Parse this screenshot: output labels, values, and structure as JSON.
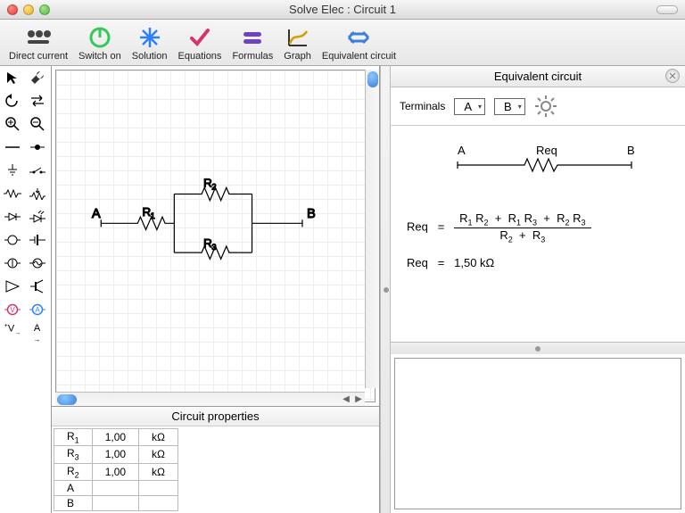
{
  "window": {
    "title": "Solve Elec : Circuit 1"
  },
  "toolbar": [
    {
      "label": "Direct current"
    },
    {
      "label": "Switch on"
    },
    {
      "label": "Solution"
    },
    {
      "label": "Equations"
    },
    {
      "label": "Formulas"
    },
    {
      "label": "Graph"
    },
    {
      "label": "Equivalent circuit"
    }
  ],
  "canvas": {
    "terminal_a": "A",
    "terminal_b": "B",
    "r1": "R",
    "r2": "R",
    "r3": "R"
  },
  "props": {
    "title": "Circuit properties",
    "rows": [
      {
        "name": "R",
        "sub": "1",
        "val": "1,00",
        "unit": "kΩ"
      },
      {
        "name": "R",
        "sub": "3",
        "val": "1,00",
        "unit": "kΩ"
      },
      {
        "name": "R",
        "sub": "2",
        "val": "1,00",
        "unit": "kΩ"
      },
      {
        "name": "A",
        "sub": "",
        "val": "",
        "unit": ""
      },
      {
        "name": "B",
        "sub": "",
        "val": "",
        "unit": ""
      }
    ]
  },
  "eqpanel": {
    "title": "Equivalent circuit",
    "terminals_label": "Terminals",
    "terminal_a": "A",
    "terminal_b": "B",
    "diagram": {
      "a": "A",
      "b": "B",
      "req": "Req"
    },
    "formula": {
      "lhs": "Req",
      "eq": "=",
      "num_parts": [
        "R",
        "1",
        " R",
        "2",
        "   +   R",
        "1",
        " R",
        "3",
        "   +   R",
        "2",
        " R",
        "3"
      ],
      "den_parts": [
        "R",
        "2",
        "   +   R",
        "3"
      ]
    },
    "value_line": {
      "lhs": "Req",
      "eq": "=",
      "val": "1,50 kΩ"
    }
  },
  "colors": {
    "toolbar_icons": [
      "#444",
      "#34c759",
      "#2b7fff",
      "#d6336c",
      "#6f42c1",
      "#d39e00",
      "#3d7fd6"
    ]
  }
}
